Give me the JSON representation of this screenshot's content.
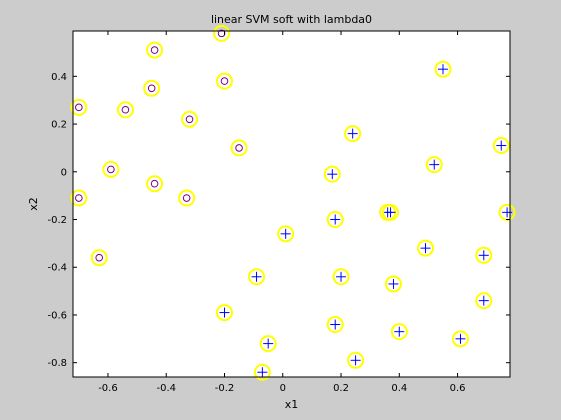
{
  "chart_data": {
    "type": "scatter",
    "title": "linear SVM soft with lambda0",
    "xlabel": "x1",
    "ylabel": "x2",
    "xlim": [
      -0.72,
      0.78
    ],
    "ylim": [
      -0.86,
      0.59
    ],
    "xticks": [
      -0.6,
      -0.4,
      -0.2,
      0,
      0.2,
      0.4,
      0.6
    ],
    "xtick_labels": [
      "-0.6",
      "-0.4",
      "-0.2",
      "0",
      "0.2",
      "0.4",
      "0.6"
    ],
    "yticks": [
      -0.8,
      -0.6,
      -0.4,
      -0.2,
      0,
      0.2,
      0.4
    ],
    "ytick_labels": [
      "-0.8",
      "-0.6",
      "-0.4",
      "-0.2",
      "0",
      "0.2",
      "0.4"
    ],
    "grid": false,
    "legend": null,
    "colors": {
      "figure_bg": "#cccccc",
      "axes_bg": "#ffffff",
      "support_vector_ring": "#ffff00",
      "negative_class": "#800080",
      "positive_class": "#0000ff"
    },
    "series": [
      {
        "marker": "o",
        "points": [
          [
            -0.21,
            0.58
          ],
          [
            -0.44,
            0.51
          ],
          [
            -0.45,
            0.35
          ],
          [
            -0.54,
            0.26
          ],
          [
            -0.7,
            0.27
          ],
          [
            -0.32,
            0.22
          ],
          [
            -0.2,
            0.38
          ],
          [
            -0.15,
            0.1
          ],
          [
            -0.59,
            0.01
          ],
          [
            -0.44,
            -0.05
          ],
          [
            -0.33,
            -0.11
          ],
          [
            -0.7,
            -0.11
          ],
          [
            -0.63,
            -0.36
          ]
        ]
      },
      {
        "marker": "+",
        "points": [
          [
            0.55,
            0.43
          ],
          [
            0.75,
            0.11
          ],
          [
            0.24,
            0.16
          ],
          [
            0.52,
            0.03
          ],
          [
            0.17,
            -0.01
          ],
          [
            0.18,
            -0.2
          ],
          [
            0.36,
            -0.17
          ],
          [
            0.37,
            -0.17
          ],
          [
            0.77,
            -0.17
          ],
          [
            0.01,
            -0.26
          ],
          [
            0.49,
            -0.32
          ],
          [
            0.69,
            -0.35
          ],
          [
            -0.09,
            -0.44
          ],
          [
            0.2,
            -0.44
          ],
          [
            0.38,
            -0.47
          ],
          [
            0.69,
            -0.54
          ],
          [
            -0.2,
            -0.59
          ],
          [
            0.18,
            -0.64
          ],
          [
            0.4,
            -0.67
          ],
          [
            0.61,
            -0.7
          ],
          [
            -0.05,
            -0.72
          ],
          [
            0.25,
            -0.79
          ],
          [
            -0.07,
            -0.84
          ]
        ]
      }
    ]
  }
}
